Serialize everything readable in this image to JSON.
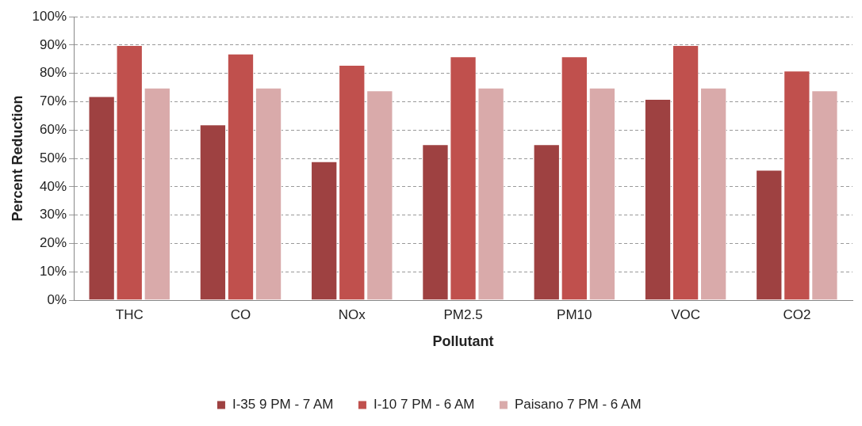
{
  "chart_data": {
    "type": "bar",
    "xlabel": "Pollutant",
    "ylabel": "Percent Reduction",
    "categories": [
      "THC",
      "CO",
      "NOx",
      "PM2.5",
      "PM10",
      "VOC",
      "CO2"
    ],
    "series": [
      {
        "name": "I-35 9 PM - 7 AM",
        "color": "#9e4141",
        "values": [
          72,
          62,
          49,
          55,
          55,
          71,
          46
        ]
      },
      {
        "name": "I-10 7 PM - 6 AM",
        "color": "#c0504d",
        "values": [
          90,
          87,
          83,
          86,
          86,
          90,
          81
        ]
      },
      {
        "name": "Paisano 7 PM - 6 AM",
        "color": "#d9aaaa",
        "values": [
          75,
          75,
          74,
          75,
          75,
          75,
          74
        ]
      }
    ],
    "ylim": [
      0,
      100
    ],
    "yticks": [
      {
        "value": 0,
        "label": "0%"
      },
      {
        "value": 10,
        "label": "10%"
      },
      {
        "value": 20,
        "label": "20%"
      },
      {
        "value": 30,
        "label": "30%"
      },
      {
        "value": 40,
        "label": "40%"
      },
      {
        "value": 50,
        "label": "50%"
      },
      {
        "value": 60,
        "label": "60%"
      },
      {
        "value": 70,
        "label": "70%"
      },
      {
        "value": 80,
        "label": "80%"
      },
      {
        "value": 90,
        "label": "90%"
      },
      {
        "value": 100,
        "label": "100%"
      }
    ],
    "grid": "y",
    "line_style": "dashed",
    "legend": "bottom"
  }
}
